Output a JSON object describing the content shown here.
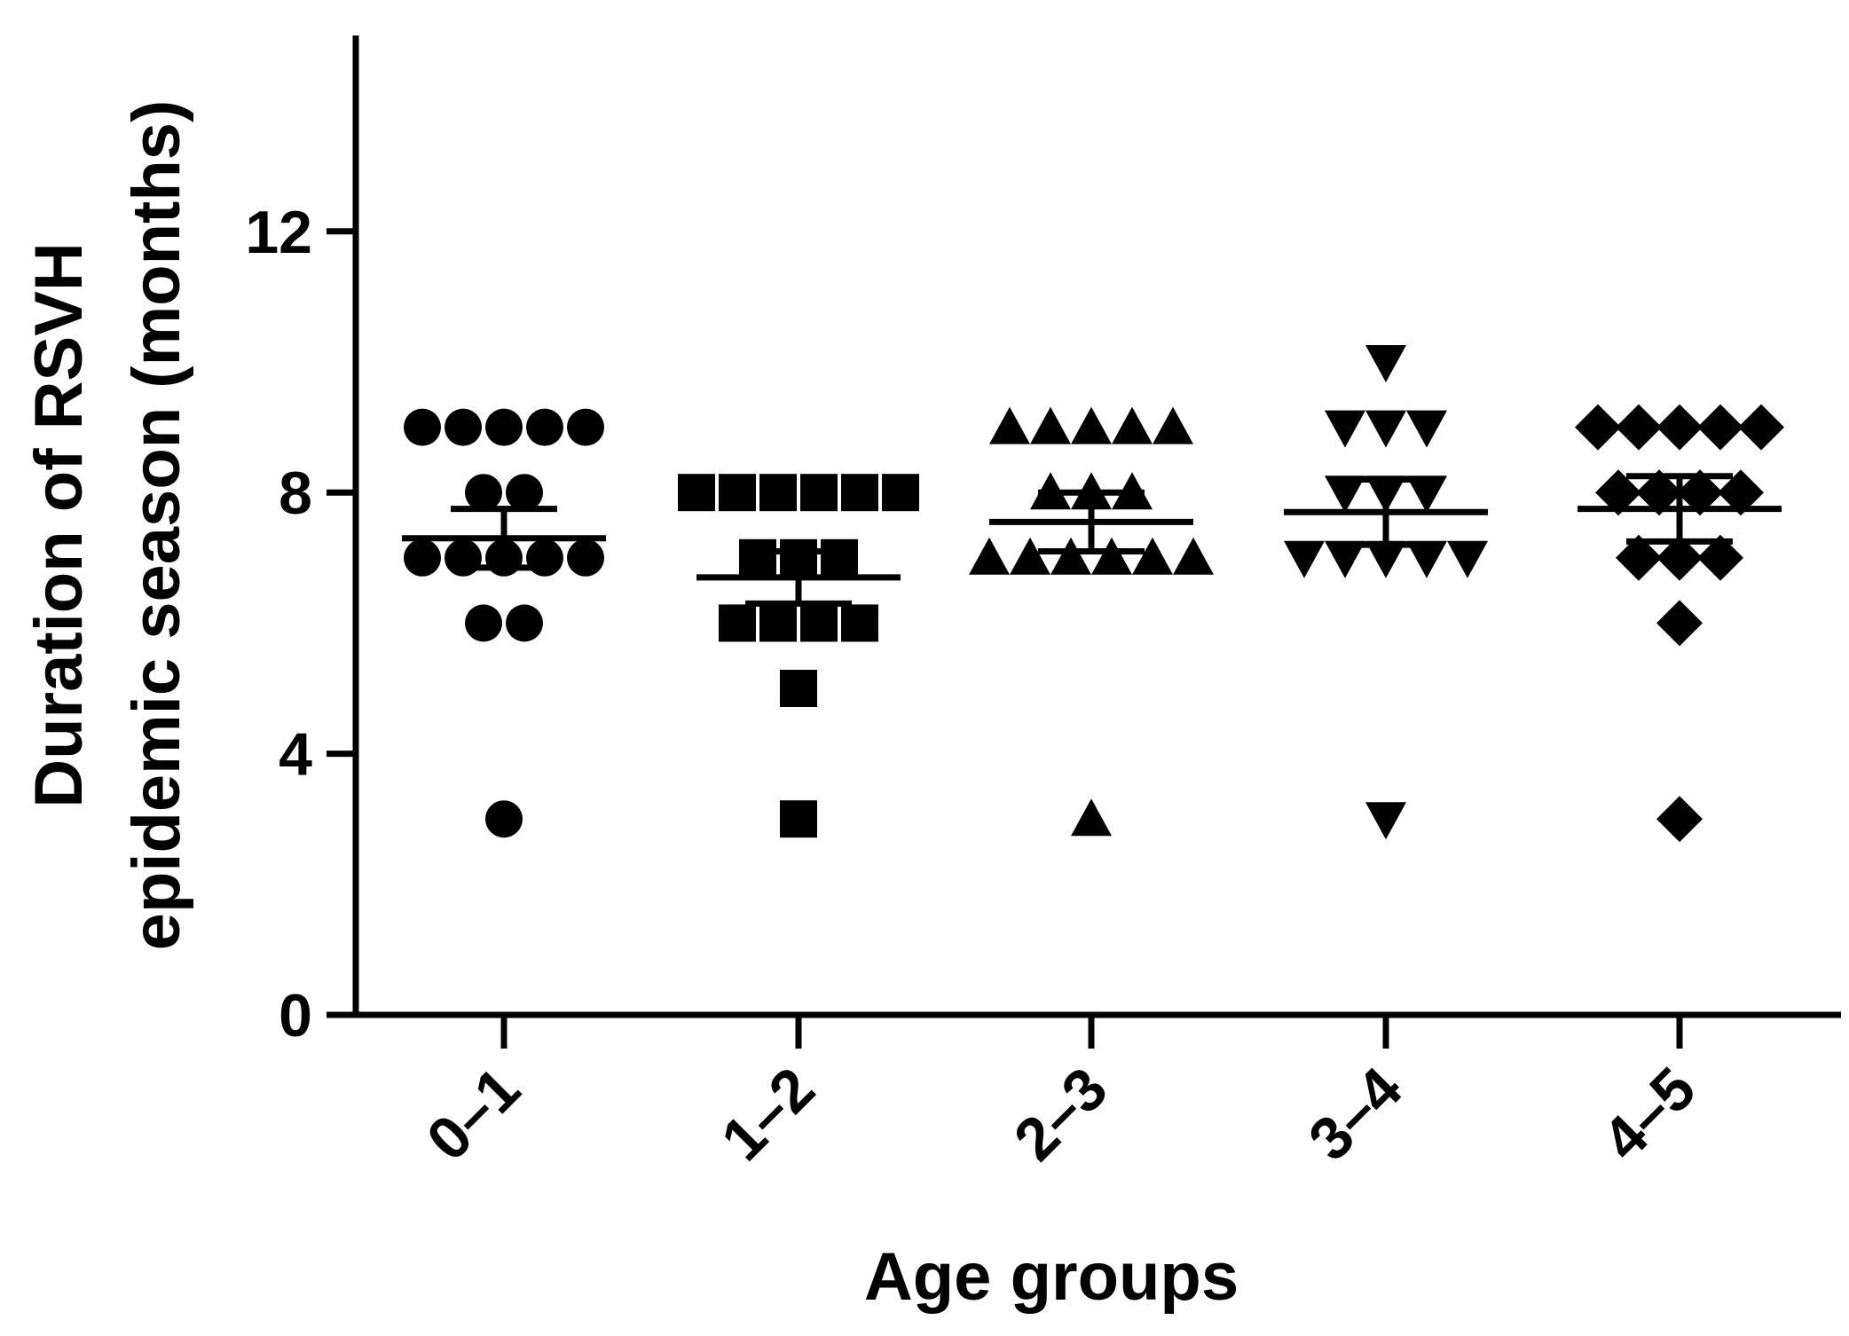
{
  "chart_data": {
    "type": "scatter",
    "title": "",
    "xlabel": "Age groups",
    "ylabel": [
      "Duration of RSVH",
      "epidemic season (months)"
    ],
    "ylim": [
      0,
      15
    ],
    "yticks": [
      0,
      4,
      8,
      12
    ],
    "ytick_labels": [
      "0",
      "4",
      "8",
      "12"
    ],
    "categories": [
      "0–1",
      "1–2",
      "2–3",
      "3–4",
      "4–5"
    ],
    "grid": false,
    "legend": "none",
    "series": [
      {
        "category": "0–1",
        "marker": "circle",
        "values": [
          9,
          9,
          9,
          9,
          9,
          8,
          8,
          7,
          7,
          7,
          7,
          7,
          6,
          6,
          3
        ],
        "mean": 7.3,
        "sem": 0.45
      },
      {
        "category": "1–2",
        "marker": "square",
        "values": [
          8,
          8,
          8,
          8,
          8,
          8,
          7,
          7,
          7,
          6,
          6,
          6,
          6,
          5,
          3
        ],
        "mean": 6.7,
        "sem": 0.4
      },
      {
        "category": "2–3",
        "marker": "triangle-up",
        "values": [
          9,
          9,
          9,
          9,
          9,
          8,
          8,
          8,
          7,
          7,
          7,
          7,
          7,
          7,
          3
        ],
        "mean": 7.55,
        "sem": 0.45
      },
      {
        "category": "3–4",
        "marker": "triangle-down",
        "values": [
          10,
          9,
          9,
          9,
          8,
          8,
          8,
          7,
          7,
          7,
          7,
          7,
          3
        ],
        "mean": 7.7,
        "sem": 0.5
      },
      {
        "category": "4–5",
        "marker": "diamond",
        "values": [
          9,
          9,
          9,
          9,
          9,
          8,
          8,
          8,
          8,
          7,
          7,
          7,
          6,
          3
        ],
        "mean": 7.75,
        "sem": 0.5
      }
    ]
  }
}
